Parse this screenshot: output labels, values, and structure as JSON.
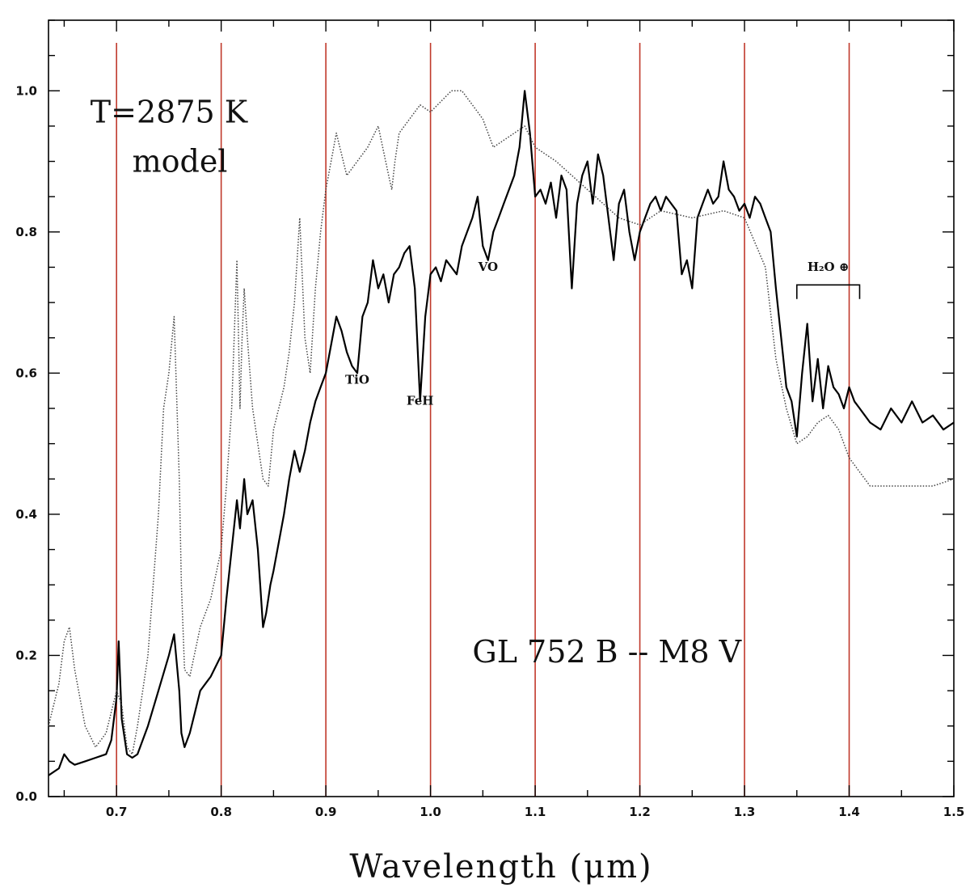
{
  "chart_data": {
    "type": "line",
    "title": "",
    "xlabel": "Wavelength (μm)",
    "ylabel": "",
    "xlim": [
      0.635,
      1.5
    ],
    "ylim": [
      0.0,
      1.1
    ],
    "grid": false,
    "legend": "none",
    "x_ticks": [
      0.7,
      0.8,
      0.9,
      1.0,
      1.1,
      1.2,
      1.3,
      1.4,
      1.5
    ],
    "x_tick_labels": [
      "0.7",
      "0.8",
      "0.9",
      "1.0",
      "1.1",
      "1.2",
      "1.3",
      "1.4",
      "1.5"
    ],
    "y_ticks": [
      0.0,
      0.2,
      0.4,
      0.6,
      0.8,
      1.0
    ],
    "y_tick_labels": [
      "0.0",
      "0.2",
      "0.4",
      "0.6",
      "0.8",
      "1.0"
    ],
    "vertical_lines": {
      "x": [
        0.7,
        0.8,
        0.9,
        1.0,
        1.1,
        1.2,
        1.3,
        1.4
      ],
      "color": "#c0392b"
    },
    "annotations": [
      {
        "text": "T=2875  K",
        "x": 0.675,
        "y": 0.955,
        "size": "large"
      },
      {
        "text": "model",
        "x": 0.715,
        "y": 0.885,
        "size": "large"
      },
      {
        "text": "GL  752  B  --  M8  V",
        "x": 1.04,
        "y": 0.19,
        "size": "large"
      },
      {
        "text": "TiO",
        "x": 0.93,
        "y": 0.585,
        "size": "small"
      },
      {
        "text": "FeH",
        "x": 0.99,
        "y": 0.555,
        "size": "small"
      },
      {
        "text": "VO",
        "x": 1.055,
        "y": 0.745,
        "size": "small"
      },
      {
        "text": "H₂O ⊕",
        "x": 1.38,
        "y": 0.745,
        "size": "small"
      }
    ],
    "h2o_bracket": {
      "x_start": 1.35,
      "x_end": 1.41,
      "y": 0.725,
      "tick_depth": 0.02
    },
    "series": [
      {
        "style": "solid",
        "color": "#000000",
        "x": [
          0.635,
          0.645,
          0.65,
          0.655,
          0.66,
          0.67,
          0.68,
          0.69,
          0.695,
          0.7,
          0.702,
          0.705,
          0.71,
          0.715,
          0.72,
          0.73,
          0.74,
          0.75,
          0.755,
          0.76,
          0.762,
          0.765,
          0.77,
          0.775,
          0.78,
          0.79,
          0.8,
          0.805,
          0.81,
          0.815,
          0.818,
          0.822,
          0.825,
          0.83,
          0.835,
          0.84,
          0.843,
          0.847,
          0.85,
          0.86,
          0.865,
          0.87,
          0.875,
          0.88,
          0.885,
          0.89,
          0.895,
          0.9,
          0.905,
          0.91,
          0.915,
          0.92,
          0.925,
          0.93,
          0.935,
          0.94,
          0.945,
          0.95,
          0.955,
          0.96,
          0.965,
          0.97,
          0.975,
          0.98,
          0.985,
          0.99,
          0.995,
          1.0,
          1.005,
          1.01,
          1.015,
          1.02,
          1.025,
          1.03,
          1.035,
          1.04,
          1.045,
          1.05,
          1.055,
          1.06,
          1.065,
          1.07,
          1.075,
          1.08,
          1.085,
          1.09,
          1.095,
          1.1,
          1.105,
          1.11,
          1.115,
          1.12,
          1.125,
          1.13,
          1.135,
          1.14,
          1.145,
          1.15,
          1.155,
          1.16,
          1.165,
          1.17,
          1.175,
          1.18,
          1.185,
          1.19,
          1.195,
          1.2,
          1.205,
          1.21,
          1.215,
          1.22,
          1.225,
          1.23,
          1.235,
          1.24,
          1.245,
          1.25,
          1.255,
          1.26,
          1.265,
          1.27,
          1.275,
          1.28,
          1.285,
          1.29,
          1.295,
          1.3,
          1.305,
          1.31,
          1.315,
          1.32,
          1.325,
          1.33,
          1.335,
          1.34,
          1.345,
          1.35,
          1.355,
          1.36,
          1.365,
          1.37,
          1.375,
          1.38,
          1.385,
          1.39,
          1.395,
          1.4,
          1.405,
          1.41,
          1.42,
          1.43,
          1.44,
          1.45,
          1.46,
          1.47,
          1.48,
          1.49,
          1.5
        ],
        "y": [
          0.03,
          0.04,
          0.06,
          0.05,
          0.045,
          0.05,
          0.055,
          0.06,
          0.08,
          0.14,
          0.22,
          0.11,
          0.06,
          0.055,
          0.06,
          0.1,
          0.15,
          0.2,
          0.23,
          0.15,
          0.09,
          0.07,
          0.09,
          0.12,
          0.15,
          0.17,
          0.2,
          0.28,
          0.35,
          0.42,
          0.38,
          0.45,
          0.4,
          0.42,
          0.35,
          0.24,
          0.26,
          0.3,
          0.32,
          0.4,
          0.45,
          0.49,
          0.46,
          0.49,
          0.53,
          0.56,
          0.58,
          0.6,
          0.64,
          0.68,
          0.66,
          0.63,
          0.61,
          0.6,
          0.68,
          0.7,
          0.76,
          0.72,
          0.74,
          0.7,
          0.74,
          0.75,
          0.77,
          0.78,
          0.72,
          0.56,
          0.68,
          0.74,
          0.75,
          0.73,
          0.76,
          0.75,
          0.74,
          0.78,
          0.8,
          0.82,
          0.85,
          0.78,
          0.76,
          0.8,
          0.82,
          0.84,
          0.86,
          0.88,
          0.92,
          1.0,
          0.94,
          0.85,
          0.86,
          0.84,
          0.87,
          0.82,
          0.88,
          0.86,
          0.72,
          0.84,
          0.88,
          0.9,
          0.84,
          0.91,
          0.88,
          0.82,
          0.76,
          0.84,
          0.86,
          0.8,
          0.76,
          0.8,
          0.82,
          0.84,
          0.85,
          0.83,
          0.85,
          0.84,
          0.83,
          0.74,
          0.76,
          0.72,
          0.82,
          0.84,
          0.86,
          0.84,
          0.85,
          0.9,
          0.86,
          0.85,
          0.83,
          0.84,
          0.82,
          0.85,
          0.84,
          0.82,
          0.8,
          0.72,
          0.65,
          0.58,
          0.56,
          0.51,
          0.6,
          0.67,
          0.56,
          0.62,
          0.55,
          0.61,
          0.58,
          0.57,
          0.55,
          0.58,
          0.56,
          0.55,
          0.53,
          0.52,
          0.55,
          0.53,
          0.56,
          0.53,
          0.54,
          0.52,
          0.53
        ]
      },
      {
        "style": "dotted",
        "color": "#444444",
        "x": [
          0.635,
          0.645,
          0.65,
          0.655,
          0.66,
          0.67,
          0.68,
          0.69,
          0.695,
          0.7,
          0.705,
          0.71,
          0.715,
          0.72,
          0.73,
          0.74,
          0.745,
          0.75,
          0.755,
          0.76,
          0.762,
          0.765,
          0.77,
          0.78,
          0.79,
          0.8,
          0.805,
          0.81,
          0.815,
          0.818,
          0.82,
          0.822,
          0.825,
          0.83,
          0.84,
          0.845,
          0.85,
          0.86,
          0.865,
          0.87,
          0.875,
          0.88,
          0.885,
          0.89,
          0.895,
          0.9,
          0.91,
          0.92,
          0.93,
          0.94,
          0.95,
          0.96,
          0.963,
          0.966,
          0.97,
          0.98,
          0.99,
          1.0,
          1.02,
          1.03,
          1.04,
          1.05,
          1.06,
          1.07,
          1.08,
          1.09,
          1.1,
          1.12,
          1.15,
          1.18,
          1.2,
          1.22,
          1.25,
          1.28,
          1.3,
          1.32,
          1.33,
          1.34,
          1.35,
          1.36,
          1.37,
          1.38,
          1.39,
          1.4,
          1.42,
          1.44,
          1.46,
          1.48,
          1.5
        ],
        "y": [
          0.1,
          0.16,
          0.22,
          0.24,
          0.18,
          0.1,
          0.07,
          0.09,
          0.12,
          0.15,
          0.13,
          0.07,
          0.06,
          0.1,
          0.2,
          0.4,
          0.55,
          0.6,
          0.68,
          0.45,
          0.3,
          0.18,
          0.17,
          0.24,
          0.28,
          0.35,
          0.44,
          0.55,
          0.76,
          0.55,
          0.65,
          0.72,
          0.65,
          0.55,
          0.45,
          0.44,
          0.52,
          0.58,
          0.63,
          0.7,
          0.82,
          0.65,
          0.6,
          0.72,
          0.8,
          0.86,
          0.94,
          0.88,
          0.9,
          0.92,
          0.95,
          0.88,
          0.86,
          0.9,
          0.94,
          0.96,
          0.98,
          0.97,
          1.0,
          1.0,
          0.98,
          0.96,
          0.92,
          0.93,
          0.94,
          0.95,
          0.92,
          0.9,
          0.86,
          0.82,
          0.81,
          0.83,
          0.82,
          0.83,
          0.82,
          0.75,
          0.62,
          0.55,
          0.5,
          0.51,
          0.53,
          0.54,
          0.52,
          0.48,
          0.44,
          0.44,
          0.44,
          0.44,
          0.45
        ]
      }
    ]
  }
}
